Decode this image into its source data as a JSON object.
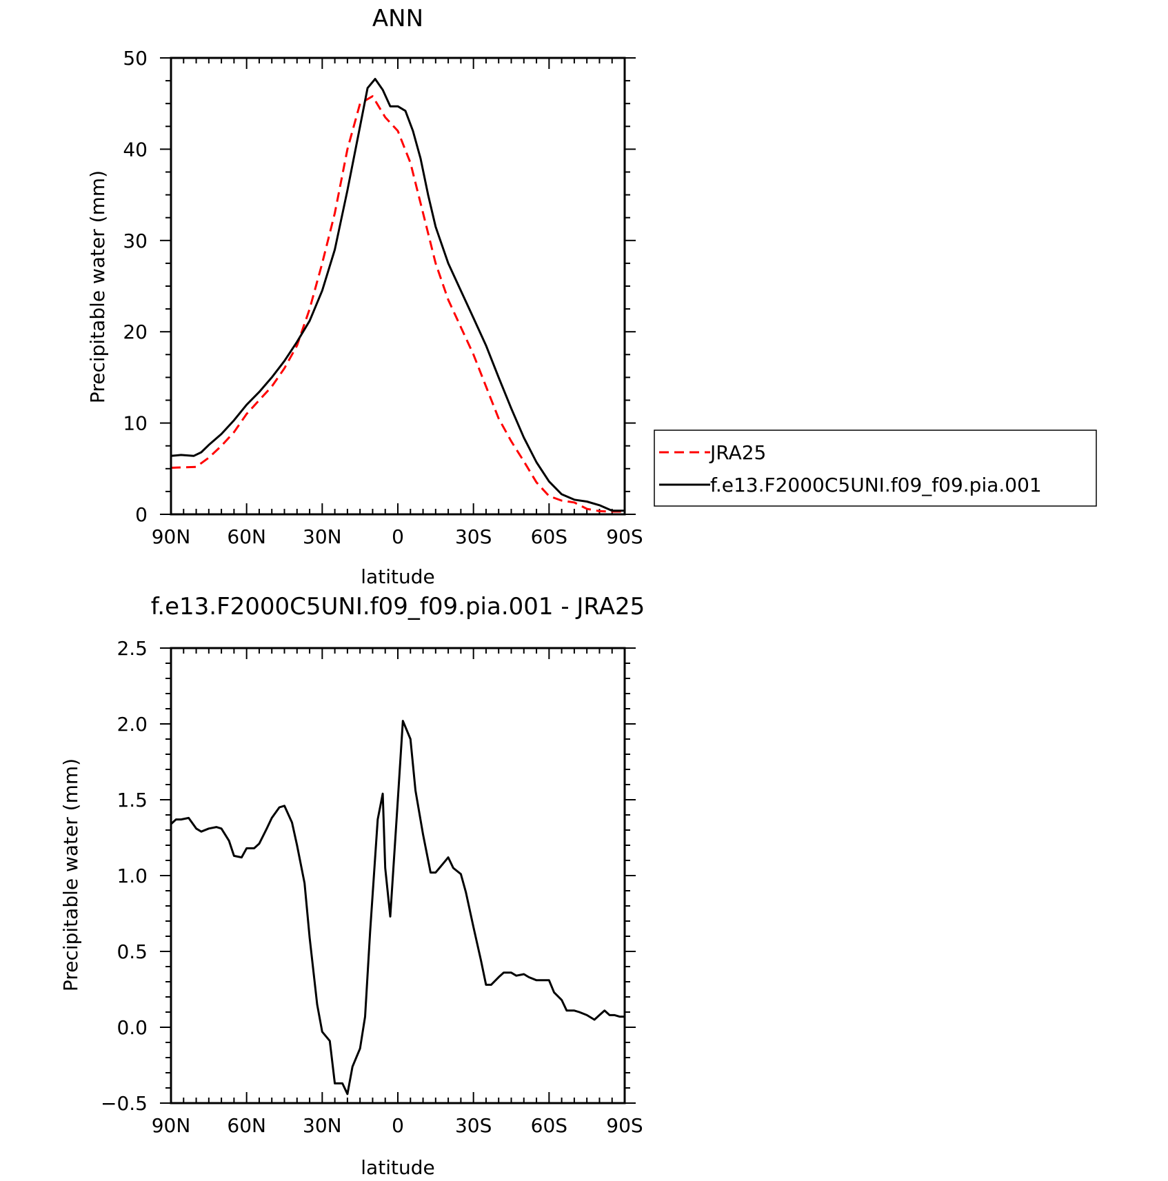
{
  "chart_data": [
    {
      "type": "line",
      "title": "ANN",
      "xlabel": "latitude",
      "ylabel": "Precipitable water (mm)",
      "xlim": [
        90,
        -90
      ],
      "ylim": [
        0,
        50
      ],
      "xticks": [
        90,
        60,
        30,
        0,
        -30,
        -60,
        -90
      ],
      "xtick_labels": [
        "90N",
        "60N",
        "30N",
        "0",
        "30S",
        "60S",
        "90S"
      ],
      "yticks": [
        0,
        10,
        20,
        30,
        40,
        50
      ],
      "ytick_labels": [
        "0",
        "10",
        "20",
        "30",
        "40",
        "50"
      ],
      "legend_position": "right",
      "series": [
        {
          "name": "JRA25",
          "color": "#ff0000",
          "dash": "dashed",
          "x": [
            90,
            80,
            75,
            70,
            65,
            60,
            55,
            50,
            45,
            40,
            35,
            30,
            25,
            20,
            15,
            10,
            5,
            0,
            -5,
            -10,
            -15,
            -20,
            -25,
            -30,
            -35,
            -40,
            -45,
            -50,
            -55,
            -60,
            -65,
            -70,
            -75,
            -80,
            -85,
            -90
          ],
          "y": [
            5.1,
            5.2,
            6.2,
            7.5,
            9.0,
            11.0,
            12.5,
            14.0,
            16.0,
            18.5,
            22.5,
            27.5,
            33.0,
            40.0,
            45.0,
            45.8,
            43.5,
            42.0,
            38.5,
            33.0,
            27.5,
            23.5,
            20.5,
            17.5,
            14.0,
            10.5,
            8.0,
            5.8,
            3.5,
            2.0,
            1.5,
            1.3,
            0.6,
            0.35,
            0.3,
            0.3
          ]
        },
        {
          "name": "f.e13.F2000C5UNI.f09_f09.pia.001",
          "color": "#000000",
          "dash": "solid",
          "x": [
            90,
            86,
            81,
            78,
            75,
            70,
            65,
            60,
            55,
            50,
            45,
            40,
            35,
            30,
            25,
            20,
            15,
            12,
            9,
            6,
            3,
            0,
            -3,
            -6,
            -9,
            -12,
            -15,
            -20,
            -25,
            -30,
            -35,
            -40,
            -45,
            -50,
            -55,
            -60,
            -65,
            -70,
            -75,
            -80,
            -85,
            -88,
            -90
          ],
          "y": [
            6.4,
            6.5,
            6.4,
            6.8,
            7.6,
            8.8,
            10.3,
            12.0,
            13.4,
            15.0,
            16.8,
            18.9,
            21.2,
            24.5,
            29.0,
            35.5,
            42.5,
            46.7,
            47.7,
            46.5,
            44.7,
            44.7,
            44.2,
            42.0,
            39.0,
            35.0,
            31.5,
            27.5,
            24.5,
            21.5,
            18.5,
            15.0,
            11.6,
            8.4,
            5.7,
            3.6,
            2.2,
            1.6,
            1.4,
            1.0,
            0.4,
            0.4,
            0.4
          ]
        }
      ]
    },
    {
      "type": "line",
      "title": "f.e13.F2000C5UNI.f09_f09.pia.001 - JRA25",
      "xlabel": "latitude",
      "ylabel": "Precipitable water (mm)",
      "xlim": [
        90,
        -90
      ],
      "ylim": [
        -0.5,
        2.5
      ],
      "xticks": [
        90,
        60,
        30,
        0,
        -30,
        -60,
        -90
      ],
      "xtick_labels": [
        "90N",
        "60N",
        "30N",
        "0",
        "30S",
        "60S",
        "90S"
      ],
      "yticks": [
        -0.5,
        0.0,
        0.5,
        1.0,
        1.5,
        2.0,
        2.5
      ],
      "ytick_labels": [
        "−0.5",
        "0.0",
        "0.5",
        "1.0",
        "1.5",
        "2.0",
        "2.5"
      ],
      "series": [
        {
          "color": "#000000",
          "x": [
            90,
            88,
            86,
            83,
            80,
            78,
            75,
            72,
            70,
            67,
            65,
            62,
            60,
            57,
            55,
            52,
            50,
            47,
            45,
            42,
            40,
            37,
            35,
            32,
            30,
            27,
            25,
            22,
            20,
            18,
            15,
            13,
            11,
            8,
            6,
            5,
            3,
            0,
            -2,
            -5,
            -7,
            -10,
            -13,
            -15,
            -18,
            -20,
            -22,
            -25,
            -27,
            -30,
            -33,
            -35,
            -37,
            -40,
            -42,
            -45,
            -47,
            -50,
            -52,
            -55,
            -57,
            -60,
            -62,
            -65,
            -67,
            -70,
            -72,
            -75,
            -78,
            -80,
            -82,
            -84,
            -86,
            -88,
            -90
          ],
          "y": [
            1.34,
            1.37,
            1.37,
            1.38,
            1.31,
            1.29,
            1.31,
            1.32,
            1.31,
            1.23,
            1.13,
            1.12,
            1.18,
            1.18,
            1.21,
            1.31,
            1.38,
            1.45,
            1.46,
            1.35,
            1.2,
            0.95,
            0.59,
            0.15,
            -0.03,
            -0.09,
            -0.37,
            -0.37,
            -0.44,
            -0.26,
            -0.14,
            0.07,
            0.63,
            1.37,
            1.54,
            1.05,
            0.73,
            1.5,
            2.02,
            1.9,
            1.56,
            1.27,
            1.02,
            1.02,
            1.08,
            1.12,
            1.05,
            1.01,
            0.89,
            0.66,
            0.44,
            0.28,
            0.28,
            0.33,
            0.36,
            0.36,
            0.34,
            0.35,
            0.33,
            0.31,
            0.31,
            0.31,
            0.23,
            0.18,
            0.11,
            0.11,
            0.1,
            0.08,
            0.05,
            0.08,
            0.11,
            0.08,
            0.08,
            0.07,
            0.07
          ]
        }
      ]
    }
  ]
}
